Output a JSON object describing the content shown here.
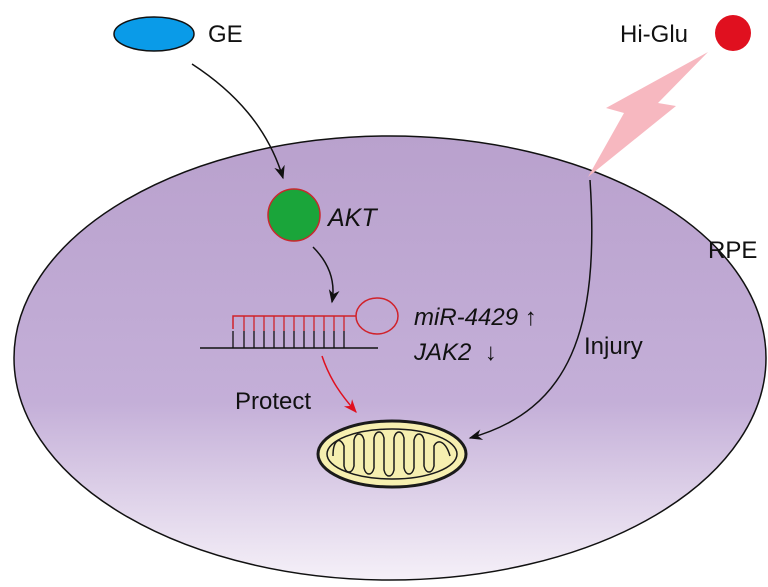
{
  "nodes": {
    "ge": {
      "label": "GE",
      "color": "#0a9be8"
    },
    "hi_glu": {
      "label": "Hi-Glu",
      "color": "#e0101f"
    },
    "akt": {
      "label": "AKT",
      "color": "#1aa53a",
      "border": "#c8282c"
    },
    "rpe": {
      "label": "RPE"
    },
    "mirna": {
      "label": "miR-4429 ↑",
      "color": "#d0222a"
    },
    "jak2": {
      "label": "JAK2  ↓"
    },
    "mitochondrion": {
      "fill": "#f6efb0",
      "stroke": "#1a1a1a"
    }
  },
  "edges": {
    "protect": {
      "label": "Protect",
      "color": "#e0101f"
    },
    "injury": {
      "label": "Injury"
    }
  },
  "colors": {
    "cell_top": "#b9a1cd",
    "cell_mid": "#c4afd8",
    "cell_bottom": "#f5f0f8",
    "lightning": "#f7b8c0"
  }
}
